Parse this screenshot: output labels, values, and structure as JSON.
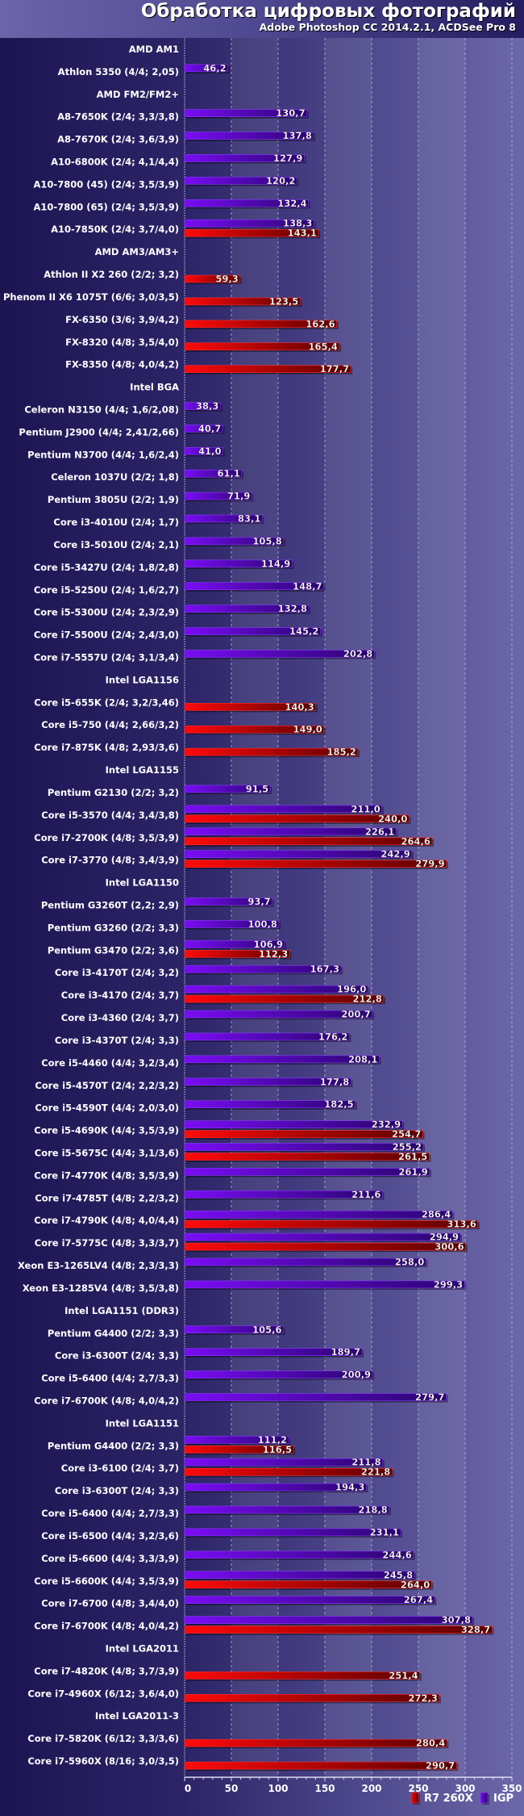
{
  "chart_data": {
    "type": "bar",
    "orientation": "horizontal",
    "title": "Обработка цифровых фотографий",
    "subtitle": "Adobe Photoshop CC 2014.2.1, ACDSee Pro 8",
    "xlabel": "",
    "ylabel": "",
    "xlim": [
      0,
      350
    ],
    "xticks": [
      0,
      50,
      100,
      150,
      200,
      250,
      300,
      350
    ],
    "grid": true,
    "legend_position": "bottom-right",
    "series": [
      {
        "name": "R7 260X",
        "color": "#e00000"
      },
      {
        "name": "IGP",
        "color": "#7000e0"
      }
    ],
    "rows": [
      {
        "label": "AMD AM1",
        "group": true
      },
      {
        "label": "Athlon 5350 (4/4; 2,05)",
        "igp": 46.2,
        "r7": null
      },
      {
        "label": "AMD FM2/FM2+",
        "group": true
      },
      {
        "label": "A8-7650K (2/4; 3,3/3,8)",
        "igp": 130.7,
        "r7": null
      },
      {
        "label": "A8-7670K (2/4; 3,6/3,9)",
        "igp": 137.8,
        "r7": null
      },
      {
        "label": "A10-6800K (2/4; 4,1/4,4)",
        "igp": 127.9,
        "r7": null
      },
      {
        "label": "A10-7800 (45) (2/4; 3,5/3,9)",
        "igp": 120.2,
        "r7": null
      },
      {
        "label": "A10-7800 (65) (2/4; 3,5/3,9)",
        "igp": 132.4,
        "r7": null
      },
      {
        "label": "A10-7850K (2/4; 3,7/4,0)",
        "igp": 138.3,
        "r7": 143.1
      },
      {
        "label": "AMD AM3/AM3+",
        "group": true
      },
      {
        "label": "Athlon II X2 260 (2/2; 3,2)",
        "igp": null,
        "r7": 59.3
      },
      {
        "label": "Phenom II X6 1075T (6/6; 3,0/3,5)",
        "igp": null,
        "r7": 123.5
      },
      {
        "label": "FX-6350 (3/6; 3,9/4,2)",
        "igp": null,
        "r7": 162.6
      },
      {
        "label": "FX-8320 (4/8; 3,5/4,0)",
        "igp": null,
        "r7": 165.4
      },
      {
        "label": "FX-8350 (4/8; 4,0/4,2)",
        "igp": null,
        "r7": 177.7
      },
      {
        "label": "Intel BGA",
        "group": true
      },
      {
        "label": "Celeron N3150 (4/4; 1,6/2,08)",
        "igp": 38.3,
        "r7": null
      },
      {
        "label": "Pentium J2900 (4/4; 2,41/2,66)",
        "igp": 40.7,
        "r7": null
      },
      {
        "label": "Pentium N3700 (4/4; 1,6/2,4)",
        "igp": 41.0,
        "r7": null
      },
      {
        "label": "Celeron 1037U (2/2; 1,8)",
        "igp": 61.1,
        "r7": null
      },
      {
        "label": "Pentium 3805U (2/2; 1,9)",
        "igp": 71.9,
        "r7": null
      },
      {
        "label": "Core i3-4010U (2/4; 1,7)",
        "igp": 83.1,
        "r7": null
      },
      {
        "label": "Core i3-5010U (2/4; 2,1)",
        "igp": 105.8,
        "r7": null
      },
      {
        "label": "Core i5-3427U (2/4; 1,8/2,8)",
        "igp": 114.9,
        "r7": null
      },
      {
        "label": "Core i5-5250U (2/4; 1,6/2,7)",
        "igp": 148.7,
        "r7": null
      },
      {
        "label": "Core i5-5300U (2/4; 2,3/2,9)",
        "igp": 132.8,
        "r7": null
      },
      {
        "label": "Core i7-5500U (2/4; 2,4/3,0)",
        "igp": 145.2,
        "r7": null
      },
      {
        "label": "Core i7-5557U (2/4; 3,1/3,4)",
        "igp": 202.8,
        "r7": null
      },
      {
        "label": "Intel LGA1156",
        "group": true
      },
      {
        "label": "Core i5-655K (2/4; 3,2/3,46)",
        "igp": null,
        "r7": 140.3
      },
      {
        "label": "Core i5-750 (4/4; 2,66/3,2)",
        "igp": null,
        "r7": 149.0
      },
      {
        "label": "Core i7-875K (4/8; 2,93/3,6)",
        "igp": null,
        "r7": 185.2
      },
      {
        "label": "Intel LGA1155",
        "group": true
      },
      {
        "label": "Pentium G2130 (2/2; 3,2)",
        "igp": 91.5,
        "r7": null
      },
      {
        "label": "Core i5-3570 (4/4; 3,4/3,8)",
        "igp": 211.0,
        "r7": 240.0
      },
      {
        "label": "Core i7-2700K (4/8; 3,5/3,9)",
        "igp": 226.1,
        "r7": 264.6
      },
      {
        "label": "Core i7-3770 (4/8; 3,4/3,9)",
        "igp": 242.9,
        "r7": 279.9
      },
      {
        "label": "Intel LGA1150",
        "group": true
      },
      {
        "label": "Pentium G3260T (2,2; 2,9)",
        "igp": 93.7,
        "r7": null
      },
      {
        "label": "Pentium G3260 (2/2; 3,3)",
        "igp": 100.8,
        "r7": null
      },
      {
        "label": "Pentium G3470 (2/2; 3,6)",
        "igp": 106.9,
        "r7": 112.3
      },
      {
        "label": "Core i3-4170T (2/4; 3,2)",
        "igp": 167.3,
        "r7": null
      },
      {
        "label": "Core i3-4170 (2/4; 3,7)",
        "igp": 196.0,
        "r7": 212.8
      },
      {
        "label": "Core i3-4360 (2/4; 3,7)",
        "igp": 200.7,
        "r7": null
      },
      {
        "label": "Core i3-4370T (2/4; 3,3)",
        "igp": 176.2,
        "r7": null
      },
      {
        "label": "Core i5-4460 (4/4; 3,2/3,4)",
        "igp": 208.1,
        "r7": null
      },
      {
        "label": "Core i5-4570T (2/4; 2,2/3,2)",
        "igp": 177.8,
        "r7": null
      },
      {
        "label": "Core i5-4590T (4/4; 2,0/3,0)",
        "igp": 182.5,
        "r7": null
      },
      {
        "label": "Core i5-4690K (4/4; 3,5/3,9)",
        "igp": 232.9,
        "r7": 254.7
      },
      {
        "label": "Core i5-5675C (4/4; 3,1/3,6)",
        "igp": 255.2,
        "r7": 261.5
      },
      {
        "label": "Core i7-4770K (4/8; 3,5/3,9)",
        "igp": 261.9,
        "r7": null
      },
      {
        "label": "Core i7-4785T (4/8; 2,2/3,2)",
        "igp": 211.6,
        "r7": null
      },
      {
        "label": "Core i7-4790K (4/8; 4,0/4,4)",
        "igp": 286.4,
        "r7": 313.6
      },
      {
        "label": "Core i7-5775C (4/8; 3,3/3,7)",
        "igp": 294.9,
        "r7": 300.6
      },
      {
        "label": "Xeon E3-1265LV4 (4/8; 2,3/3,3)",
        "igp": 258.0,
        "r7": null
      },
      {
        "label": "Xeon E3-1285V4 (4/8; 3,5/3,8)",
        "igp": 299.3,
        "r7": null
      },
      {
        "label": "Intel LGA1151 (DDR3)",
        "group": true
      },
      {
        "label": "Pentium G4400 (2/2; 3,3)",
        "igp": 105.6,
        "r7": null
      },
      {
        "label": "Core i3-6300T (2/4; 3,3)",
        "igp": 189.7,
        "r7": null
      },
      {
        "label": "Core i5-6400 (4/4; 2,7/3,3)",
        "igp": 200.9,
        "r7": null
      },
      {
        "label": "Core i7-6700K (4/8; 4,0/4,2)",
        "igp": 279.7,
        "r7": null
      },
      {
        "label": "Intel LGA1151",
        "group": true
      },
      {
        "label": "Pentium G4400 (2/2; 3,3)",
        "igp": 111.2,
        "r7": 116.5
      },
      {
        "label": "Core i3-6100 (2/4; 3,7)",
        "igp": 211.8,
        "r7": 221.8
      },
      {
        "label": "Core i3-6300T (2/4; 3,3)",
        "igp": 194.3,
        "r7": null
      },
      {
        "label": "Core i5-6400  (4/4; 2,7/3,3)",
        "igp": 218.8,
        "r7": null
      },
      {
        "label": "Core i5-6500 (4/4; 3,2/3,6)",
        "igp": 231.1,
        "r7": null
      },
      {
        "label": "Core i5-6600 (4/4; 3,3/3,9)",
        "igp": 244.6,
        "r7": null
      },
      {
        "label": "Core i5-6600K (4/4; 3,5/3,9)",
        "igp": 245.8,
        "r7": 264.0
      },
      {
        "label": "Core i7-6700 (4/8; 3,4/4,0)",
        "igp": 267.4,
        "r7": null
      },
      {
        "label": "Core i7-6700K (4/8; 4,0/4,2)",
        "igp": 307.8,
        "r7": 328.7
      },
      {
        "label": "Intel LGA2011",
        "group": true
      },
      {
        "label": "Core i7-4820K (4/8; 3,7/3,9)",
        "igp": null,
        "r7": 251.4
      },
      {
        "label": "Core i7-4960X (6/12; 3,6/4,0)",
        "igp": null,
        "r7": 272.3
      },
      {
        "label": "Intel LGA2011-3",
        "group": true
      },
      {
        "label": "Core i7-5820K (6/12; 3,3/3,6)",
        "igp": null,
        "r7": 280.4
      },
      {
        "label": "Core i7-5960X (8/16; 3,0/3,5)",
        "igp": null,
        "r7": 290.7
      }
    ]
  }
}
